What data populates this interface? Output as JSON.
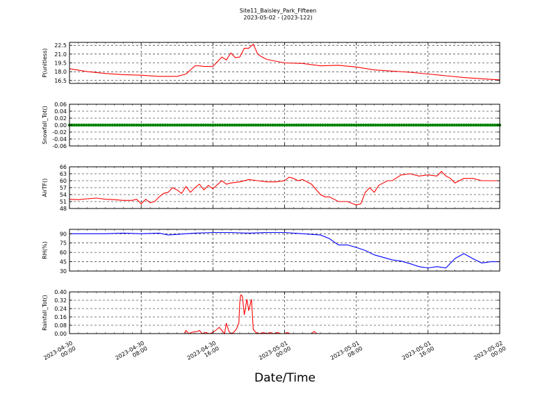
{
  "figure": {
    "title": "Site11_Baisley_Park_Fifteen",
    "subtitle": "2023-05-02 - (2023-122)",
    "xlabel": "Date/Time"
  },
  "chart_data": [
    {
      "type": "line",
      "ylabel": "P(unitless)",
      "ylim": [
        16.0,
        23.0
      ],
      "yticks": [
        "22.5",
        "21.0",
        "19.5",
        "18.0",
        "16.5"
      ],
      "ytick_values": [
        22.5,
        21.0,
        19.5,
        18.0,
        16.5
      ],
      "color": "#ff0000",
      "grid": true,
      "x": [
        0,
        2,
        4,
        6,
        8,
        10,
        12,
        13,
        14,
        14.5,
        15,
        16,
        17,
        17.5,
        18,
        18.5,
        19,
        19.5,
        20,
        20.5,
        21,
        21.5,
        22,
        23,
        24,
        26,
        28,
        30,
        32,
        34,
        36,
        38,
        40,
        42,
        44,
        46,
        48
      ],
      "values": [
        18.5,
        18.0,
        17.7,
        17.5,
        17.4,
        17.2,
        17.2,
        17.6,
        19.0,
        19.0,
        18.9,
        18.9,
        20.5,
        20.0,
        21.2,
        20.4,
        20.5,
        22.0,
        22.0,
        22.7,
        21.0,
        20.5,
        20.1,
        19.8,
        19.5,
        19.4,
        19.0,
        19.1,
        18.8,
        18.3,
        18.1,
        17.9,
        17.6,
        17.3,
        17.0,
        16.8,
        16.6
      ]
    },
    {
      "type": "scatter",
      "ylabel": "Snowfall_Tot()",
      "ylim": [
        -0.06,
        0.06
      ],
      "yticks": [
        "0.06",
        "0.04",
        "0.02",
        "0.00",
        "-0.02",
        "-0.04",
        "-0.06"
      ],
      "ytick_values": [
        0.06,
        0.04,
        0.02,
        0.0,
        -0.02,
        -0.04,
        -0.06
      ],
      "color": "#008000",
      "grid": true,
      "x_range": [
        0,
        48
      ],
      "constant_value": 0.0
    },
    {
      "type": "line",
      "ylabel": "AirTF()",
      "ylim": [
        48,
        66
      ],
      "yticks": [
        "66",
        "63",
        "60",
        "57",
        "54",
        "51",
        "48"
      ],
      "ytick_values": [
        66,
        63,
        60,
        57,
        54,
        51,
        48
      ],
      "color": "#ff0000",
      "grid": true,
      "x": [
        0,
        1,
        2,
        3,
        4,
        5,
        6,
        7,
        7.5,
        8,
        8.5,
        9,
        9.5,
        10,
        10.5,
        11,
        11.5,
        12,
        12.5,
        13,
        13.5,
        14,
        14.5,
        15,
        15.5,
        16,
        17,
        17.5,
        18,
        19,
        20,
        21,
        22,
        23,
        24,
        24.5,
        25,
        25.5,
        26,
        27,
        28,
        28.5,
        29,
        30,
        31,
        32,
        32.5,
        33,
        33.5,
        34,
        34.5,
        35,
        35.5,
        36,
        37,
        38,
        39,
        40,
        41,
        41.5,
        42,
        42.5,
        43,
        44,
        45,
        46,
        47,
        48
      ],
      "values": [
        52,
        51.8,
        52.2,
        52.5,
        52,
        51.8,
        51.5,
        51.5,
        52,
        50,
        52,
        50.5,
        51,
        53,
        54.5,
        55,
        57,
        56,
        54.5,
        57.5,
        55,
        57,
        58.5,
        56,
        58,
        56.5,
        60,
        58.5,
        59,
        59.5,
        60.5,
        60,
        59.5,
        59.5,
        60,
        61.5,
        61,
        60,
        60.5,
        58.5,
        54,
        53,
        53,
        51,
        51,
        49.5,
        50,
        55,
        57,
        55,
        58,
        59,
        60,
        60,
        62.5,
        63,
        62,
        62.5,
        62,
        64,
        62,
        61,
        59,
        61,
        61,
        60,
        60,
        60
      ]
    },
    {
      "type": "line",
      "ylabel": "RH(%)",
      "ylim": [
        30,
        97
      ],
      "yticks": [
        "90",
        "75",
        "60",
        "45",
        "30"
      ],
      "ytick_values": [
        90,
        75,
        60,
        45,
        30
      ],
      "color": "#0000ff",
      "grid": true,
      "x": [
        0,
        2,
        4,
        6,
        8,
        10,
        11,
        12,
        14,
        16,
        18,
        20,
        22,
        24,
        26,
        28,
        29,
        30,
        31,
        32,
        33,
        34,
        35,
        36,
        37,
        38,
        39,
        40,
        41,
        42,
        43,
        44,
        45,
        46,
        47,
        48
      ],
      "values": [
        90,
        90,
        90,
        91,
        90,
        91,
        88,
        89,
        91,
        92,
        92,
        91,
        92,
        92,
        90,
        88,
        82,
        72,
        72,
        68,
        63,
        56,
        52,
        48,
        46,
        42,
        37,
        35,
        37,
        35,
        50,
        58,
        50,
        43,
        45,
        45
      ]
    },
    {
      "type": "line",
      "ylabel": "Rainfall_Tot()",
      "ylim": [
        0,
        0.4
      ],
      "yticks": [
        "0.40",
        "0.32",
        "0.24",
        "0.16",
        "0.08",
        "0.00"
      ],
      "ytick_values": [
        0.4,
        0.32,
        0.24,
        0.16,
        0.08,
        0.0
      ],
      "color": "#ff0000",
      "grid": true,
      "x": [
        0,
        12.8,
        13,
        13.3,
        13.6,
        14,
        14.3,
        14.5,
        14.8,
        15.2,
        15.6,
        16,
        16.3,
        16.7,
        17,
        17.3,
        17.5,
        17.8,
        18,
        18.3,
        18.6,
        18.9,
        19,
        19.1,
        19.2,
        19.3,
        19.5,
        19.8,
        20,
        20.3,
        20.5,
        20.8,
        21.2,
        21.6,
        22,
        22.4,
        22.8,
        23.2,
        23.6,
        24,
        24.3,
        24.6,
        25,
        27,
        27.3,
        27.6,
        28,
        48
      ],
      "values": [
        0,
        0,
        0.03,
        0.0,
        0.01,
        0.02,
        0.02,
        0.03,
        0.0,
        0.01,
        0.0,
        0.01,
        0.03,
        0.06,
        0.03,
        0.0,
        0.1,
        0.02,
        0.0,
        0.01,
        0.04,
        0.1,
        0.3,
        0.37,
        0.37,
        0.35,
        0.18,
        0.33,
        0.22,
        0.33,
        0.04,
        0.01,
        0.0,
        0.01,
        0.0,
        0.01,
        0.0,
        0.01,
        0.0,
        0.0,
        0.01,
        0.0,
        0.0,
        0.0,
        0.02,
        0.0,
        0.0,
        0.0
      ]
    }
  ],
  "x_axis": {
    "range_hours": [
      0,
      48
    ],
    "tick_hours": [
      0,
      8,
      16,
      24,
      32,
      40,
      48
    ],
    "tick_labels": [
      [
        "2023-04-30",
        "00:00"
      ],
      [
        "2023-04-30",
        "08:00"
      ],
      [
        "2023-04-30",
        "16:00"
      ],
      [
        "2023-05-01",
        "00:00"
      ],
      [
        "2023-05-01",
        "08:00"
      ],
      [
        "2023-05-01",
        "16:00"
      ],
      [
        "2023-05-02",
        "00:00"
      ]
    ]
  }
}
